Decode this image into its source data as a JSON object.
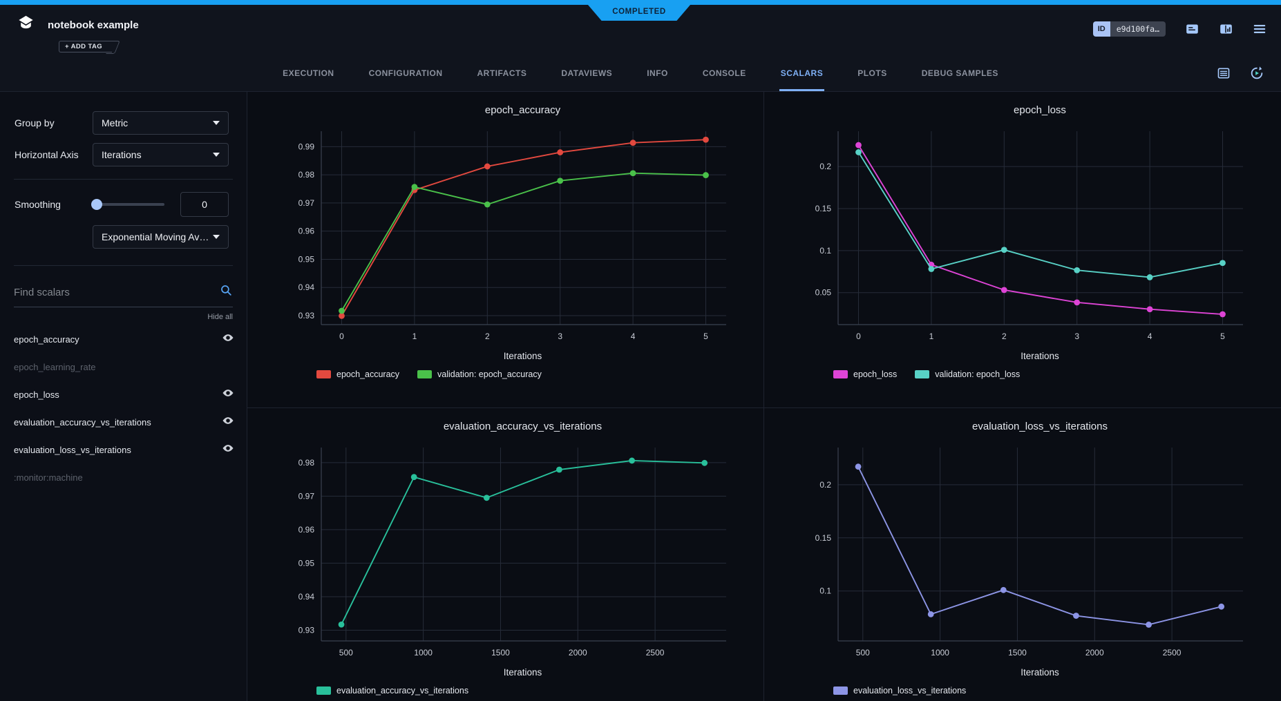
{
  "colors": {
    "accent_blue": "#18a0f2",
    "tab_active": "#7fb0f5",
    "icon_blue": "#a5c8fa",
    "grid_line": "#262c39",
    "axis_line": "#3b4250"
  },
  "status_ribbon": {
    "label": "COMPLETED"
  },
  "header": {
    "title": "notebook example",
    "add_tag_label": "+ ADD TAG",
    "id_badge": {
      "label": "ID",
      "value": "e9d100fa…"
    }
  },
  "icons": {
    "logo": "layered-stack",
    "header_right": [
      "comment",
      "columns",
      "menu"
    ],
    "tabbar_right": [
      "table",
      "auto-refresh"
    ],
    "search": "magnifier",
    "metric_visible": "eye"
  },
  "tabs": {
    "items": [
      "EXECUTION",
      "CONFIGURATION",
      "ARTIFACTS",
      "DATAVIEWS",
      "INFO",
      "CONSOLE",
      "SCALARS",
      "PLOTS",
      "DEBUG SAMPLES"
    ],
    "active": "SCALARS"
  },
  "sidebar": {
    "group_by": {
      "label": "Group by",
      "value": "Metric"
    },
    "horizontal_axis": {
      "label": "Horizontal Axis",
      "value": "Iterations"
    },
    "smoothing": {
      "label": "Smoothing",
      "value": "0",
      "type_value": "Exponential Moving Av…"
    },
    "search": {
      "placeholder": "Find scalars"
    },
    "hide_all_label": "Hide all",
    "metrics": [
      {
        "name": "epoch_accuracy",
        "visible": true
      },
      {
        "name": "epoch_learning_rate",
        "visible": false
      },
      {
        "name": "epoch_loss",
        "visible": true
      },
      {
        "name": "evaluation_accuracy_vs_iterations",
        "visible": true
      },
      {
        "name": "evaluation_loss_vs_iterations",
        "visible": true
      },
      {
        "name": ":monitor:machine",
        "visible": false
      }
    ]
  },
  "chart_data": [
    {
      "type": "line",
      "title": "epoch_accuracy",
      "xlabel": "Iterations",
      "x": [
        0,
        1,
        2,
        3,
        4,
        5
      ],
      "x_ticks": [
        0,
        1,
        2,
        3,
        4,
        5
      ],
      "xlim": [
        -0.28,
        5.28
      ],
      "y_ticks": [
        0.93,
        0.94,
        0.95,
        0.96,
        0.97,
        0.98,
        0.99
      ],
      "ylim": [
        0.9268,
        0.9955
      ],
      "grid": true,
      "legend_position": "bottom-left",
      "series": [
        {
          "name": "epoch_accuracy",
          "color": "#e3493f",
          "values": [
            0.9299,
            0.9746,
            0.983,
            0.988,
            0.9914,
            0.9925
          ]
        },
        {
          "name": "validation: epoch_accuracy",
          "color": "#4ac14a",
          "values": [
            0.9317,
            0.9757,
            0.9695,
            0.9779,
            0.9806,
            0.9799
          ]
        }
      ]
    },
    {
      "type": "line",
      "title": "epoch_loss",
      "xlabel": "Iterations",
      "x": [
        0,
        1,
        2,
        3,
        4,
        5
      ],
      "x_ticks": [
        0,
        1,
        2,
        3,
        4,
        5
      ],
      "xlim": [
        -0.28,
        5.28
      ],
      "y_ticks": [
        0.05,
        0.1,
        0.15,
        0.2
      ],
      "ylim": [
        0.012,
        0.242
      ],
      "grid": true,
      "legend_position": "bottom-left",
      "series": [
        {
          "name": "epoch_loss",
          "color": "#de44d6",
          "values": [
            0.2255,
            0.0832,
            0.0532,
            0.0384,
            0.0303,
            0.0243
          ]
        },
        {
          "name": "validation: epoch_loss",
          "color": "#58d1c6",
          "values": [
            0.217,
            0.0781,
            0.1009,
            0.0767,
            0.0683,
            0.0853
          ]
        }
      ]
    },
    {
      "type": "line",
      "title": "evaluation_accuracy_vs_iterations",
      "xlabel": "Iterations",
      "x": [
        470,
        940,
        1410,
        1880,
        2350,
        2820
      ],
      "x_ticks": [
        500,
        1000,
        1500,
        2000,
        2500
      ],
      "xlim": [
        340,
        2960
      ],
      "y_ticks": [
        0.93,
        0.94,
        0.95,
        0.96,
        0.97,
        0.98
      ],
      "ylim": [
        0.9268,
        0.9845
      ],
      "grid": true,
      "legend_position": "bottom-left",
      "series": [
        {
          "name": "evaluation_accuracy_vs_iterations",
          "color": "#29c09b",
          "values": [
            0.9317,
            0.9757,
            0.9695,
            0.9779,
            0.9806,
            0.9799
          ]
        }
      ]
    },
    {
      "type": "line",
      "title": "evaluation_loss_vs_iterations",
      "xlabel": "Iterations",
      "x": [
        470,
        940,
        1410,
        1880,
        2350,
        2820
      ],
      "x_ticks": [
        500,
        1000,
        1500,
        2000,
        2500
      ],
      "xlim": [
        340,
        2960
      ],
      "y_ticks": [
        0.1,
        0.15,
        0.2
      ],
      "ylim": [
        0.053,
        0.235
      ],
      "grid": true,
      "legend_position": "bottom-left",
      "series": [
        {
          "name": "evaluation_loss_vs_iterations",
          "color": "#8d95e6",
          "values": [
            0.217,
            0.0781,
            0.1009,
            0.0767,
            0.0683,
            0.0853
          ]
        }
      ]
    }
  ]
}
